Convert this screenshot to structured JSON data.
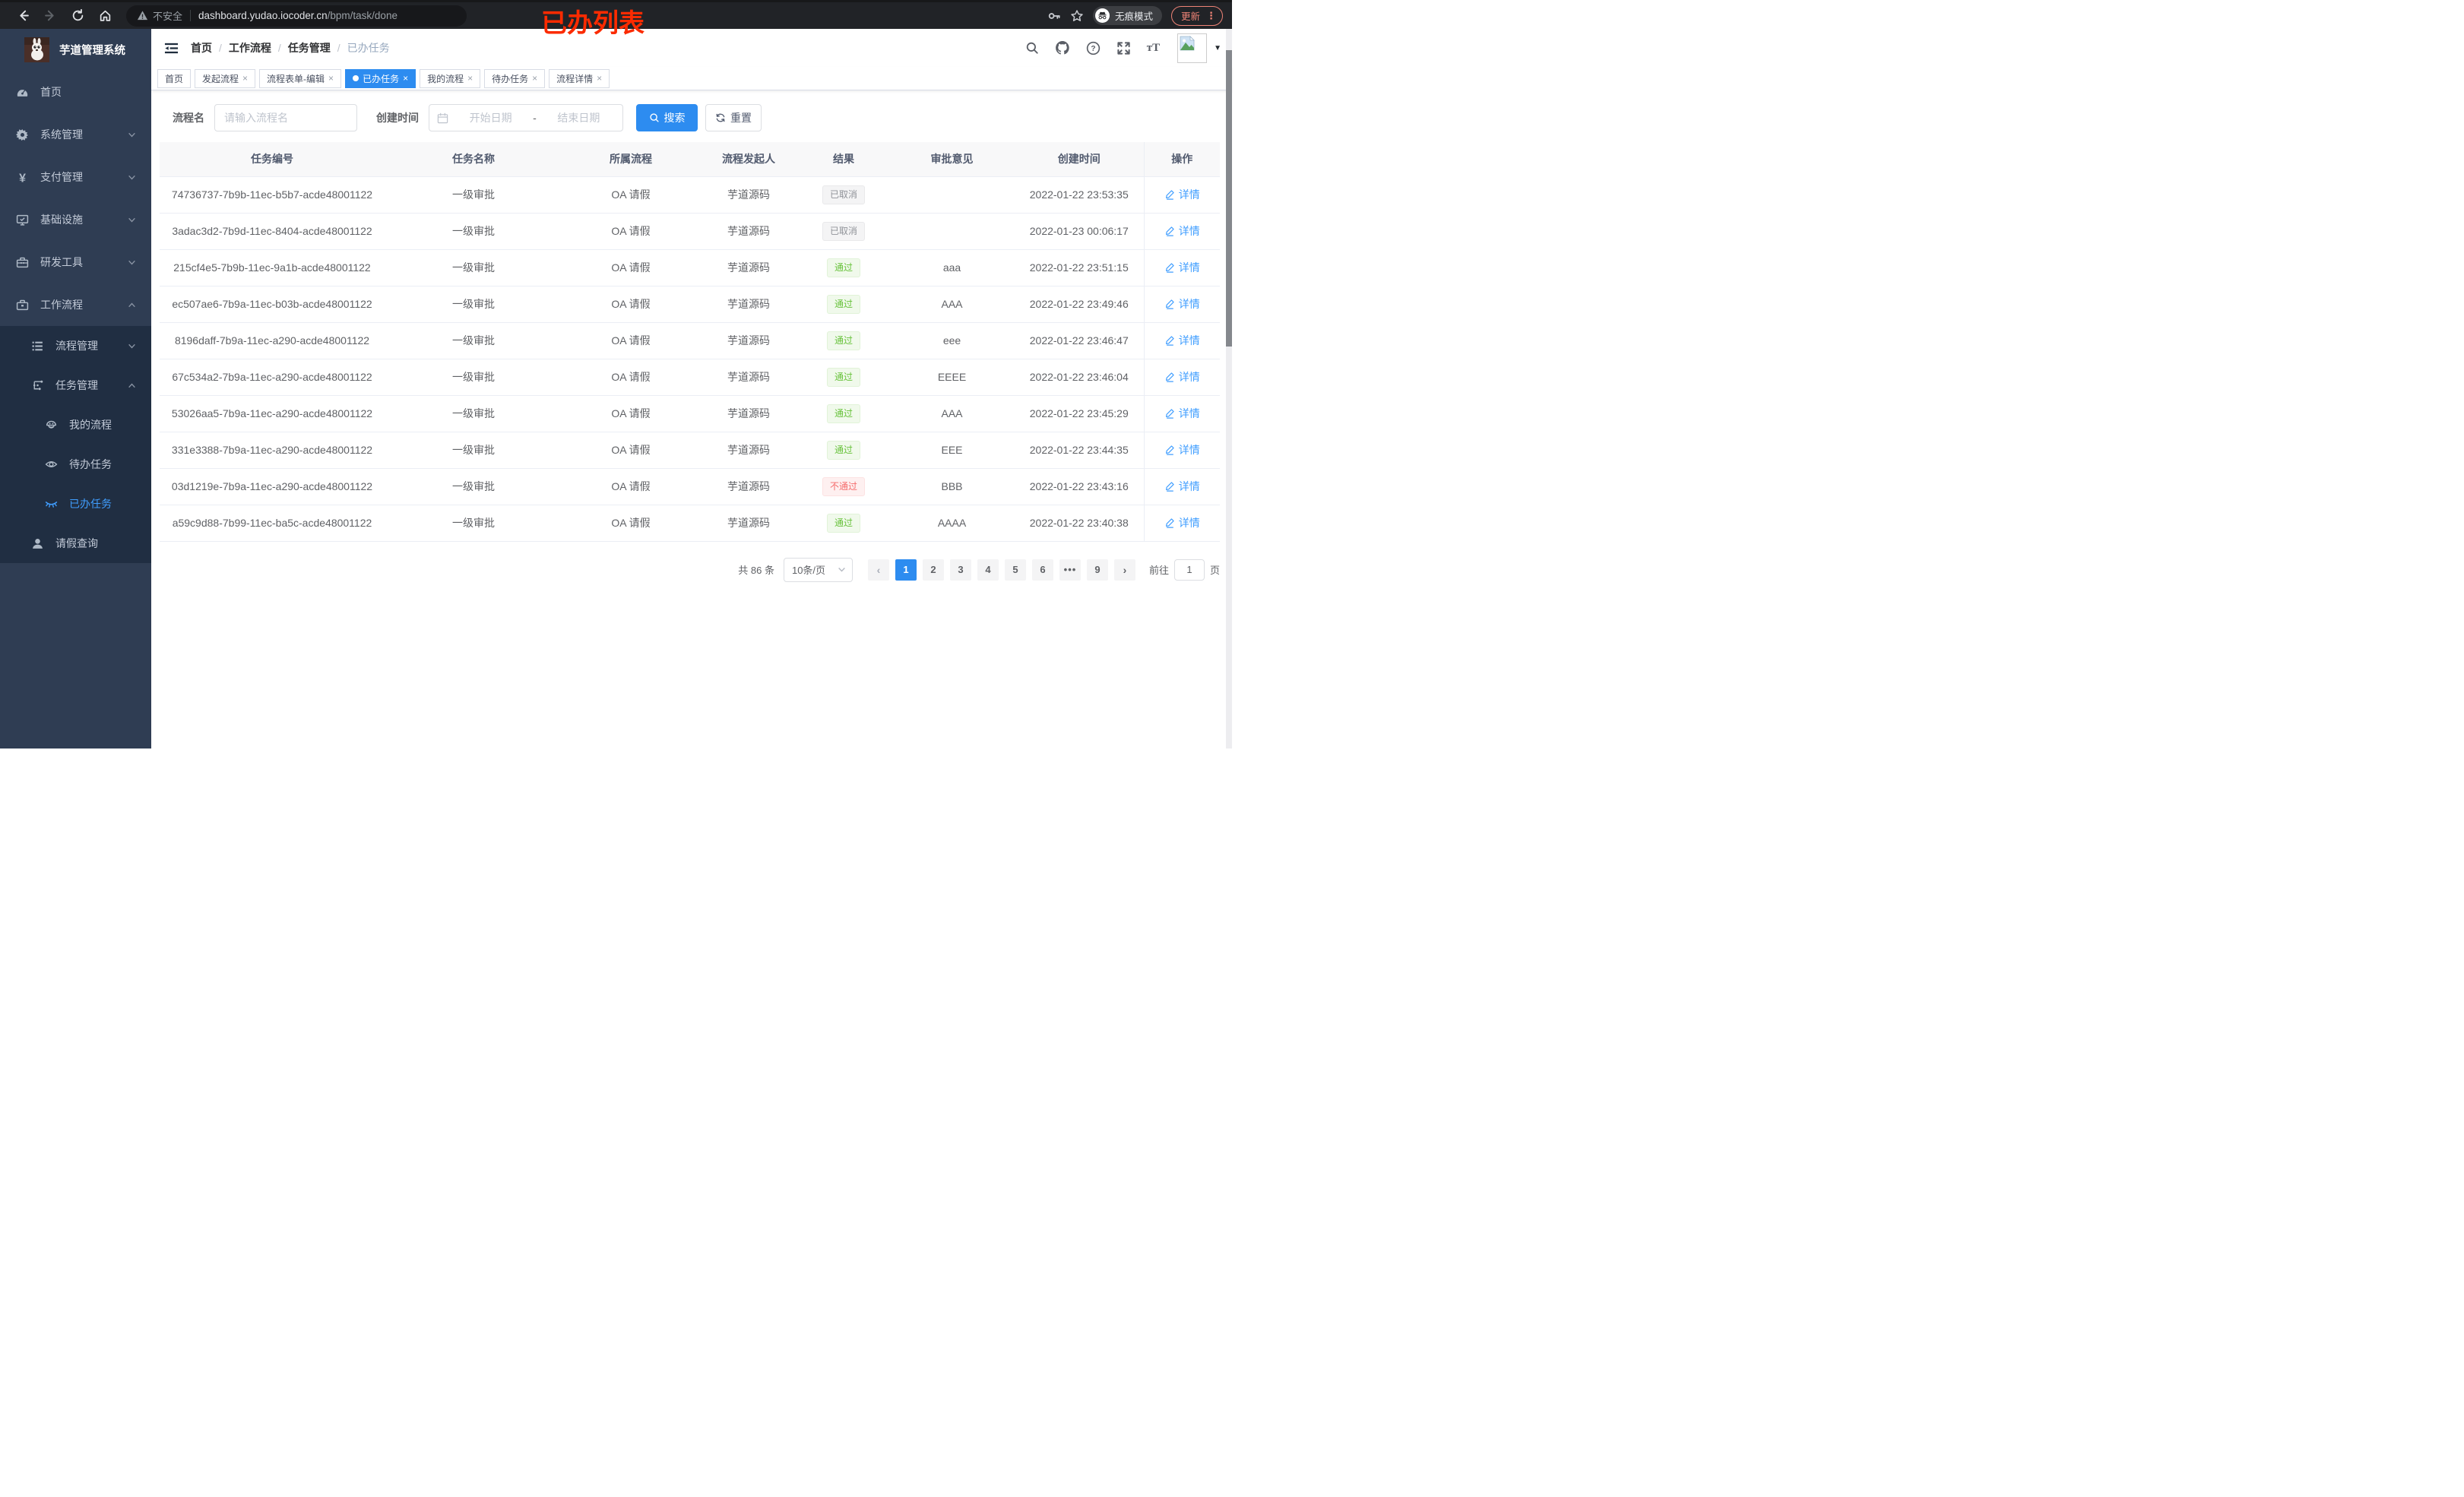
{
  "colors": {
    "accent_blue": "#2d8cf0",
    "link_blue": "#409eff",
    "success_green": "#67c23a",
    "danger_red": "#f56c6c",
    "info_gray": "#909399",
    "annotation_red": "#fb2b01"
  },
  "annotation": "已办列表",
  "browser": {
    "security_label": "不安全",
    "url_host": "dashboard.yudao.iocoder.cn",
    "url_path": "/bpm/task/done",
    "incognito_label": "无痕模式",
    "update_label": "更新",
    "menu_dots": "⋮"
  },
  "sidebar": {
    "logo_title": "芋道管理系统",
    "menu": [
      {
        "label": "首页",
        "icon": "dashboard-icon",
        "level": 0
      },
      {
        "label": "系统管理",
        "icon": "gear-icon",
        "level": 0,
        "chevron": "down"
      },
      {
        "label": "支付管理",
        "icon": "money-icon",
        "level": 0,
        "chevron": "down"
      },
      {
        "label": "基础设施",
        "icon": "infra-icon",
        "level": 0,
        "chevron": "down"
      },
      {
        "label": "研发工具",
        "icon": "toolbox-icon",
        "level": 0,
        "chevron": "down"
      },
      {
        "label": "工作流程",
        "icon": "workflow-icon",
        "level": 0,
        "chevron": "up"
      },
      {
        "label": "流程管理",
        "icon": "process-list-icon",
        "level": 1,
        "chevron": "down",
        "group": "sub"
      },
      {
        "label": "任务管理",
        "icon": "task-tree-icon",
        "level": 1,
        "chevron": "up",
        "group": "sub"
      },
      {
        "label": "我的流程",
        "icon": "robot-icon",
        "level": 2,
        "group": "sub"
      },
      {
        "label": "待办任务",
        "icon": "eye-open-icon",
        "level": 2,
        "group": "sub"
      },
      {
        "label": "已办任务",
        "icon": "eye-closed-icon",
        "level": 2,
        "group": "sub",
        "active": true
      },
      {
        "label": "请假查询",
        "icon": "user-icon",
        "level": 1,
        "group": "sub"
      }
    ]
  },
  "navbar": {
    "breadcrumb": [
      "首页",
      "工作流程",
      "任务管理",
      "已办任务"
    ],
    "separator": "/"
  },
  "tabs": {
    "items": [
      {
        "label": "首页",
        "closable": false
      },
      {
        "label": "发起流程",
        "closable": true
      },
      {
        "label": "流程表单-编辑",
        "closable": true
      },
      {
        "label": "已办任务",
        "closable": true,
        "active": true
      },
      {
        "label": "我的流程",
        "closable": true
      },
      {
        "label": "待办任务",
        "closable": true
      },
      {
        "label": "流程详情",
        "closable": true
      }
    ],
    "close_glyph": "×"
  },
  "filters": {
    "name_label": "流程名",
    "name_placeholder": "请输入流程名",
    "time_label": "创建时间",
    "start_placeholder": "开始日期",
    "range_separator": "-",
    "end_placeholder": "结束日期",
    "search_label": "搜索",
    "reset_label": "重置"
  },
  "table": {
    "columns": [
      "任务编号",
      "任务名称",
      "所属流程",
      "流程发起人",
      "结果",
      "审批意见",
      "创建时间",
      "操作"
    ],
    "action_label": "详情",
    "rows": [
      {
        "id": "74736737-7b9b-11ec-b5b7-acde48001122",
        "name": "一级审批",
        "process": "OA 请假",
        "starter": "芋道源码",
        "result": "已取消",
        "result_type": "info",
        "comment": "",
        "time": "2022-01-22 23:53:35"
      },
      {
        "id": "3adac3d2-7b9d-11ec-8404-acde48001122",
        "name": "一级审批",
        "process": "OA 请假",
        "starter": "芋道源码",
        "result": "已取消",
        "result_type": "info",
        "comment": "",
        "time": "2022-01-23 00:06:17"
      },
      {
        "id": "215cf4e5-7b9b-11ec-9a1b-acde48001122",
        "name": "一级审批",
        "process": "OA 请假",
        "starter": "芋道源码",
        "result": "通过",
        "result_type": "success",
        "comment": "aaa",
        "time": "2022-01-22 23:51:15"
      },
      {
        "id": "ec507ae6-7b9a-11ec-b03b-acde48001122",
        "name": "一级审批",
        "process": "OA 请假",
        "starter": "芋道源码",
        "result": "通过",
        "result_type": "success",
        "comment": "AAA",
        "time": "2022-01-22 23:49:46"
      },
      {
        "id": "8196daff-7b9a-11ec-a290-acde48001122",
        "name": "一级审批",
        "process": "OA 请假",
        "starter": "芋道源码",
        "result": "通过",
        "result_type": "success",
        "comment": "eee",
        "time": "2022-01-22 23:46:47"
      },
      {
        "id": "67c534a2-7b9a-11ec-a290-acde48001122",
        "name": "一级审批",
        "process": "OA 请假",
        "starter": "芋道源码",
        "result": "通过",
        "result_type": "success",
        "comment": "EEEE",
        "time": "2022-01-22 23:46:04"
      },
      {
        "id": "53026aa5-7b9a-11ec-a290-acde48001122",
        "name": "一级审批",
        "process": "OA 请假",
        "starter": "芋道源码",
        "result": "通过",
        "result_type": "success",
        "comment": "AAA",
        "time": "2022-01-22 23:45:29"
      },
      {
        "id": "331e3388-7b9a-11ec-a290-acde48001122",
        "name": "一级审批",
        "process": "OA 请假",
        "starter": "芋道源码",
        "result": "通过",
        "result_type": "success",
        "comment": "EEE",
        "time": "2022-01-22 23:44:35"
      },
      {
        "id": "03d1219e-7b9a-11ec-a290-acde48001122",
        "name": "一级审批",
        "process": "OA 请假",
        "starter": "芋道源码",
        "result": "不通过",
        "result_type": "danger",
        "comment": "BBB",
        "time": "2022-01-22 23:43:16"
      },
      {
        "id": "a59c9d88-7b99-11ec-ba5c-acde48001122",
        "name": "一级审批",
        "process": "OA 请假",
        "starter": "芋道源码",
        "result": "通过",
        "result_type": "success",
        "comment": "AAAA",
        "time": "2022-01-22 23:40:38"
      }
    ]
  },
  "pagination": {
    "total_label": "共 86 条",
    "page_size_label": "10条/页",
    "prev_glyph": "‹",
    "next_glyph": "›",
    "pages": [
      "1",
      "2",
      "3",
      "4",
      "5",
      "6",
      "•••",
      "9"
    ],
    "active_page": "1",
    "goto_label": "前往",
    "goto_value": "1",
    "page_unit_label": "页"
  }
}
